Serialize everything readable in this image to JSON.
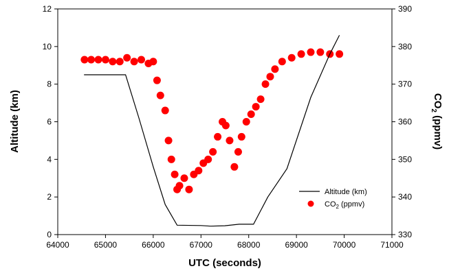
{
  "chart_data": {
    "type": "line",
    "title": "",
    "xlabel": "UTC (seconds)",
    "ylabel_left": "Altitude (km)",
    "ylabel_right_base": "CO",
    "ylabel_right_sub": "2",
    "ylabel_right_suffix": " (ppmv)",
    "xlim": [
      64000,
      71000
    ],
    "ylim_left": [
      0,
      12
    ],
    "ylim_right": [
      330,
      390
    ],
    "x_ticks": [
      "64000",
      "65000",
      "66000",
      "67000",
      "68000",
      "69000",
      "70000",
      "71000"
    ],
    "y_left_ticks": [
      "0",
      "2",
      "4",
      "6",
      "8",
      "10",
      "12"
    ],
    "y_right_ticks": [
      "330",
      "340",
      "350",
      "360",
      "370",
      "380",
      "390"
    ],
    "grid": false,
    "legend_position": "lower-right",
    "legend": [
      {
        "base": "Altitude (km)",
        "sub": "",
        "suffix": ""
      },
      {
        "base": "CO",
        "sub": "2",
        "suffix": " (ppmv)"
      }
    ],
    "colors": {
      "altitude": "#000000",
      "co2": "#ff0000"
    },
    "series": [
      {
        "name": "Altitude (km)",
        "axis": "left",
        "style": "line",
        "x": [
          64550,
          65420,
          65700,
          66000,
          66250,
          66500,
          67000,
          67200,
          67500,
          67800,
          68100,
          68400,
          68800,
          69300,
          69700,
          69900
        ],
        "y": [
          8.5,
          8.5,
          6.2,
          3.6,
          1.6,
          0.5,
          0.48,
          0.45,
          0.47,
          0.55,
          0.55,
          2.0,
          3.5,
          7.3,
          9.6,
          10.6
        ]
      },
      {
        "name": "CO2 (ppmv)",
        "axis": "right",
        "style": "scatter",
        "x": [
          64560,
          64700,
          64850,
          65000,
          65150,
          65300,
          65450,
          65600,
          65750,
          65900,
          66000,
          66080,
          66150,
          66250,
          66320,
          66380,
          66450,
          66500,
          66550,
          66650,
          66750,
          66850,
          66950,
          67050,
          67150,
          67250,
          67350,
          67450,
          67520,
          67600,
          67700,
          67780,
          67850,
          67950,
          68050,
          68150,
          68250,
          68350,
          68450,
          68550,
          68700,
          68900,
          69100,
          69300,
          69500,
          69700,
          69900
        ],
        "y": [
          376.5,
          376.5,
          376.5,
          376.5,
          376.0,
          376.0,
          377.0,
          376.0,
          376.5,
          375.5,
          376.0,
          371.0,
          367.0,
          363.0,
          355.0,
          350.0,
          346.0,
          342.0,
          343.0,
          345.0,
          342.0,
          346.0,
          347.0,
          349.0,
          350.0,
          352.0,
          356.0,
          360.0,
          359.0,
          355.0,
          348.0,
          352.0,
          356.0,
          360.0,
          362.0,
          364.0,
          366.0,
          370.0,
          372.0,
          374.0,
          376.0,
          377.0,
          378.0,
          378.5,
          378.5,
          378.0,
          378.0
        ]
      }
    ]
  }
}
